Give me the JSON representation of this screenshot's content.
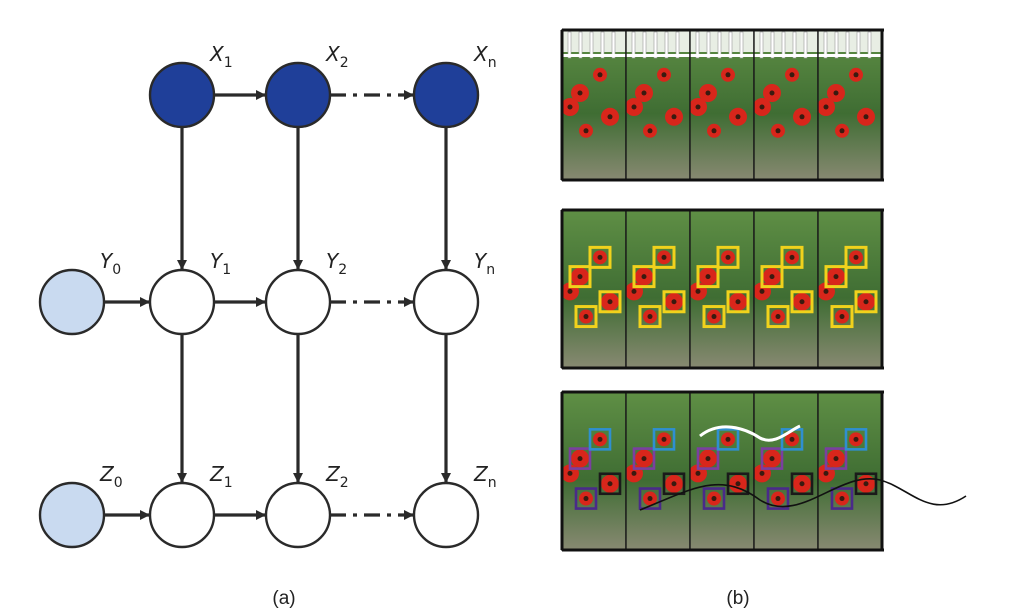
{
  "panel_a": {
    "caption": "(a)",
    "nodes": [
      {
        "id": "X1",
        "letter": "X",
        "sub": "1",
        "kind": "observed"
      },
      {
        "id": "X2",
        "letter": "X",
        "sub": "2",
        "kind": "observed"
      },
      {
        "id": "Xn",
        "letter": "X",
        "sub": "n",
        "kind": "observed"
      },
      {
        "id": "Y0",
        "letter": "Y",
        "sub": "0",
        "kind": "initial"
      },
      {
        "id": "Y1",
        "letter": "Y",
        "sub": "1",
        "kind": "latent"
      },
      {
        "id": "Y2",
        "letter": "Y",
        "sub": "2",
        "kind": "latent"
      },
      {
        "id": "Yn",
        "letter": "Y",
        "sub": "n",
        "kind": "latent"
      },
      {
        "id": "Z0",
        "letter": "Z",
        "sub": "0",
        "kind": "initial"
      },
      {
        "id": "Z1",
        "letter": "Z",
        "sub": "1",
        "kind": "latent"
      },
      {
        "id": "Z2",
        "letter": "Z",
        "sub": "2",
        "kind": "latent"
      },
      {
        "id": "Zn",
        "letter": "Z",
        "sub": "n",
        "kind": "latent"
      }
    ],
    "edges": [
      {
        "from": "X1",
        "to": "X2",
        "style": "solid"
      },
      {
        "from": "X2",
        "to": "Xn",
        "style": "dashdot"
      },
      {
        "from": "Y0",
        "to": "Y1",
        "style": "solid"
      },
      {
        "from": "Y1",
        "to": "Y2",
        "style": "solid"
      },
      {
        "from": "Y2",
        "to": "Yn",
        "style": "dashdot"
      },
      {
        "from": "Z0",
        "to": "Z1",
        "style": "solid"
      },
      {
        "from": "Z1",
        "to": "Z2",
        "style": "solid"
      },
      {
        "from": "Z2",
        "to": "Zn",
        "style": "dashdot"
      },
      {
        "from": "X1",
        "to": "Y1",
        "style": "solid"
      },
      {
        "from": "X2",
        "to": "Y2",
        "style": "solid"
      },
      {
        "from": "Xn",
        "to": "Yn",
        "style": "solid"
      },
      {
        "from": "Y1",
        "to": "Z1",
        "style": "solid"
      },
      {
        "from": "Y2",
        "to": "Z2",
        "style": "solid"
      },
      {
        "from": "Yn",
        "to": "Zn",
        "style": "solid"
      }
    ],
    "colors": {
      "observed": "#1f3f99",
      "initial": "#c9daf0",
      "latent": "#ffffff",
      "stroke": "#2a2a2a"
    }
  },
  "panel_b": {
    "caption": "(b)",
    "stacks": [
      {
        "name": "video-frames",
        "frames": 5,
        "overlay": "none"
      },
      {
        "name": "detections",
        "frames": 5,
        "overlay": "yellow-boxes"
      },
      {
        "name": "tracks",
        "frames": 5,
        "overlay": "colored-boxes-with-trajectories"
      }
    ],
    "colors": {
      "foliage": "#4c7a3a",
      "flower": "#d8261b",
      "detection_box": "#f1d21c",
      "track_boxes": [
        "#7a3fa0",
        "#2f8fd0",
        "#1a1a1a",
        "#4a2a8a"
      ]
    }
  }
}
